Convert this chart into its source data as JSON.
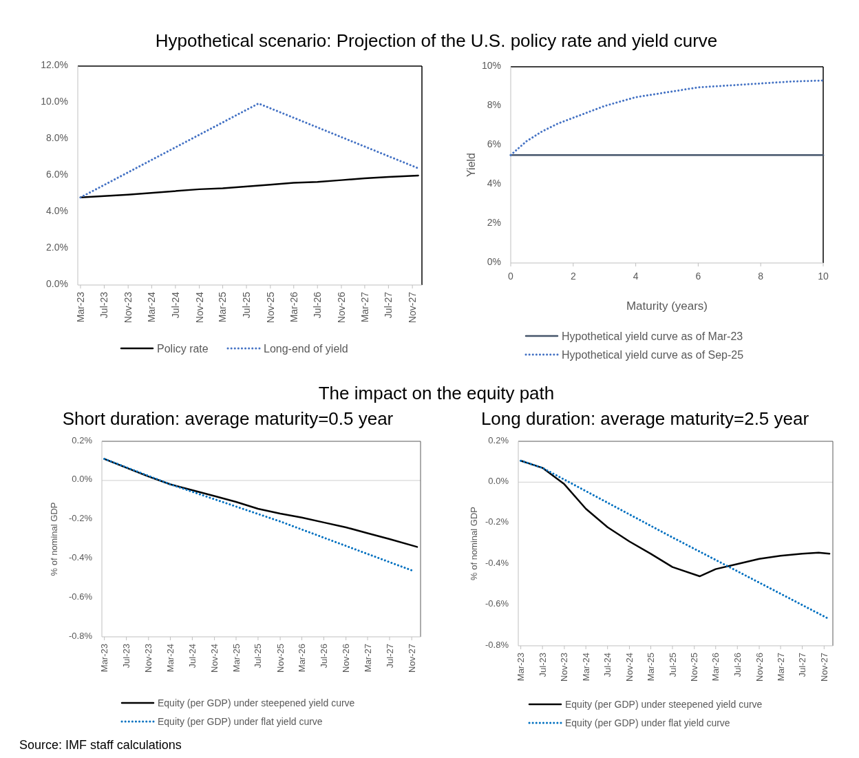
{
  "chart_data": [
    {
      "type": "line",
      "title": "Hypothetical scenario: Projection of the U.S. policy rate and yield curve",
      "xlim": [
        "2023-02-15",
        "2027-12-20"
      ],
      "xticks": [
        {
          "value": "2023-03",
          "label": "Mar-23"
        },
        {
          "value": "2023-07",
          "label": "Jul-23"
        },
        {
          "value": "2023-11",
          "label": "Nov-23"
        },
        {
          "value": "2024-03",
          "label": "Mar-24"
        },
        {
          "value": "2024-07",
          "label": "Jul-24"
        },
        {
          "value": "2024-11",
          "label": "Nov-24"
        },
        {
          "value": "2025-03",
          "label": "Mar-25"
        },
        {
          "value": "2025-07",
          "label": "Jul-25"
        },
        {
          "value": "2025-11",
          "label": "Nov-25"
        },
        {
          "value": "2026-03",
          "label": "Mar-26"
        },
        {
          "value": "2026-07",
          "label": "Jul-26"
        },
        {
          "value": "2026-11",
          "label": "Nov-26"
        },
        {
          "value": "2027-03",
          "label": "Mar-27"
        },
        {
          "value": "2027-07",
          "label": "Jul-27"
        },
        {
          "value": "2027-11",
          "label": "Nov-27"
        }
      ],
      "ylim": [
        0,
        12
      ],
      "yticks": [
        {
          "value": 0,
          "label": "0.0%"
        },
        {
          "value": 2,
          "label": "2.0%"
        },
        {
          "value": 4,
          "label": "4.0%"
        },
        {
          "value": 6,
          "label": "6.0%"
        },
        {
          "value": 8,
          "label": "8.0%"
        },
        {
          "value": 10,
          "label": "10.0%"
        },
        {
          "value": 12,
          "label": "12.0%"
        }
      ],
      "grid": false,
      "legend": "bottom",
      "series": [
        {
          "name": "Policy rate",
          "color": "#000000",
          "line_style": "solid",
          "x": [
            "2023-03",
            "2023-11",
            "2024-11",
            "2025-03",
            "2025-11",
            "2026-03",
            "2026-07",
            "2026-11",
            "2027-03",
            "2027-07",
            "2027-12"
          ],
          "values": [
            4.8,
            4.95,
            5.25,
            5.3,
            5.5,
            5.6,
            5.65,
            5.75,
            5.85,
            5.92,
            6.0
          ]
        },
        {
          "name": "Long-end of yield",
          "color": "#4472c4",
          "line_style": "dotted",
          "x": [
            "2023-03",
            "2025-09",
            "2027-12"
          ],
          "values": [
            4.8,
            9.95,
            6.4
          ]
        }
      ]
    },
    {
      "type": "line",
      "xlabel": "Maturity (years)",
      "ylabel": "Yield",
      "xlim": [
        0,
        10
      ],
      "xticks": [
        0,
        2,
        4,
        6,
        8,
        10
      ],
      "ylim": [
        0,
        10
      ],
      "yticks": [
        {
          "value": 0,
          "label": "0%"
        },
        {
          "value": 2,
          "label": "2%"
        },
        {
          "value": 4,
          "label": "4%"
        },
        {
          "value": 6,
          "label": "6%"
        },
        {
          "value": 8,
          "label": "8%"
        },
        {
          "value": 10,
          "label": "10%"
        }
      ],
      "grid": false,
      "legend": "bottom",
      "series": [
        {
          "name": "Hypothetical yield curve as of Mar-23",
          "color": "#44546a",
          "line_style": "solid",
          "x": [
            0,
            10
          ],
          "values": [
            5.5,
            5.5
          ]
        },
        {
          "name": "Hypothetical yield curve as of Sep-25",
          "color": "#4472c4",
          "line_style": "dotted",
          "x": [
            0,
            0.5,
            1,
            1.5,
            2,
            3,
            4,
            5,
            6,
            7,
            8,
            9,
            10
          ],
          "values": [
            5.5,
            6.2,
            6.7,
            7.1,
            7.4,
            8.0,
            8.45,
            8.7,
            8.95,
            9.05,
            9.15,
            9.25,
            9.3
          ]
        }
      ]
    },
    {
      "type": "line",
      "title": "The impact on the equity path",
      "subtitle": "Short duration: average maturity=0.5 year",
      "ylabel": "% of nominal GDP",
      "xlim": [
        "2023-02-15",
        "2027-12-20"
      ],
      "xticks": [
        {
          "value": "2023-03",
          "label": "Mar-23"
        },
        {
          "value": "2023-07",
          "label": "Jul-23"
        },
        {
          "value": "2023-11",
          "label": "Nov-23"
        },
        {
          "value": "2024-03",
          "label": "Mar-24"
        },
        {
          "value": "2024-07",
          "label": "Jul-24"
        },
        {
          "value": "2024-11",
          "label": "Nov-24"
        },
        {
          "value": "2025-03",
          "label": "Mar-25"
        },
        {
          "value": "2025-07",
          "label": "Jul-25"
        },
        {
          "value": "2025-11",
          "label": "Nov-25"
        },
        {
          "value": "2026-03",
          "label": "Mar-26"
        },
        {
          "value": "2026-07",
          "label": "Jul-26"
        },
        {
          "value": "2026-11",
          "label": "Nov-26"
        },
        {
          "value": "2027-03",
          "label": "Mar-27"
        },
        {
          "value": "2027-07",
          "label": "Jul-27"
        },
        {
          "value": "2027-11",
          "label": "Nov-27"
        }
      ],
      "ylim": [
        -0.8,
        0.2
      ],
      "yticks": [
        {
          "value": -0.8,
          "label": "-0.8%"
        },
        {
          "value": -0.6,
          "label": "-0.6%"
        },
        {
          "value": -0.4,
          "label": "-0.4%"
        },
        {
          "value": -0.2,
          "label": "-0.2%"
        },
        {
          "value": 0,
          "label": "0.0%"
        },
        {
          "value": 0.2,
          "label": "0.2%"
        }
      ],
      "grid": false,
      "legend": "bottom",
      "ref_lines": [
        {
          "axis": "y",
          "value": 0,
          "color": "#d9d9d9"
        }
      ],
      "series": [
        {
          "name": "Equity (per GDP) under steepened yield curve",
          "color": "#000000",
          "line_style": "solid",
          "x": [
            "2023-03",
            "2023-07",
            "2023-11",
            "2024-03",
            "2024-07",
            "2024-11",
            "2025-03",
            "2025-07",
            "2025-11",
            "2026-03",
            "2026-07",
            "2026-11",
            "2027-03",
            "2027-07",
            "2027-12"
          ],
          "values": [
            0.11,
            0.065,
            0.02,
            -0.02,
            -0.05,
            -0.08,
            -0.11,
            -0.145,
            -0.17,
            -0.19,
            -0.215,
            -0.24,
            -0.27,
            -0.3,
            -0.34
          ]
        },
        {
          "name": "Equity (per GDP) under flat yield curve",
          "color": "#0070c0",
          "line_style": "dotted",
          "x": [
            "2023-03",
            "2024-03",
            "2025-11",
            "2027-11"
          ],
          "values": [
            0.11,
            -0.02,
            -0.21,
            -0.46
          ]
        }
      ]
    },
    {
      "type": "line",
      "title": "Long duration: average maturity=2.5 year",
      "ylabel": "% of nominal GDP",
      "xlim": [
        "2023-02-15",
        "2027-12-20"
      ],
      "xticks": [
        {
          "value": "2023-03",
          "label": "Mar-23"
        },
        {
          "value": "2023-07",
          "label": "Jul-23"
        },
        {
          "value": "2023-11",
          "label": "Nov-23"
        },
        {
          "value": "2024-03",
          "label": "Mar-24"
        },
        {
          "value": "2024-07",
          "label": "Jul-24"
        },
        {
          "value": "2024-11",
          "label": "Nov-24"
        },
        {
          "value": "2025-03",
          "label": "Mar-25"
        },
        {
          "value": "2025-07",
          "label": "Jul-25"
        },
        {
          "value": "2025-11",
          "label": "Nov-25"
        },
        {
          "value": "2026-03",
          "label": "Mar-26"
        },
        {
          "value": "2026-07",
          "label": "Jul-26"
        },
        {
          "value": "2026-11",
          "label": "Nov-26"
        },
        {
          "value": "2027-03",
          "label": "Mar-27"
        },
        {
          "value": "2027-07",
          "label": "Jul-27"
        },
        {
          "value": "2027-11",
          "label": "Nov-27"
        }
      ],
      "ylim": [
        -0.8,
        0.2
      ],
      "yticks": [
        {
          "value": -0.8,
          "label": "-0.8%"
        },
        {
          "value": -0.6,
          "label": "-0.6%"
        },
        {
          "value": -0.4,
          "label": "-0.4%"
        },
        {
          "value": -0.2,
          "label": "-0.2%"
        },
        {
          "value": 0,
          "label": "0.0%"
        },
        {
          "value": 0.2,
          "label": "0.2%"
        }
      ],
      "grid": false,
      "legend": "bottom",
      "ref_lines": [
        {
          "axis": "y",
          "value": 0,
          "color": "#d9d9d9"
        }
      ],
      "annotations": [
        "Source: IMF staff calculations"
      ],
      "series": [
        {
          "name": "Equity (per GDP) under steepened yield curve",
          "color": "#000000",
          "line_style": "solid",
          "x": [
            "2023-03",
            "2023-07",
            "2023-11",
            "2024-03",
            "2024-07",
            "2024-11",
            "2025-03",
            "2025-07",
            "2025-12",
            "2026-03",
            "2026-07",
            "2026-11",
            "2027-03",
            "2027-07",
            "2027-10",
            "2027-12"
          ],
          "values": [
            0.105,
            0.07,
            -0.01,
            -0.13,
            -0.22,
            -0.29,
            -0.35,
            -0.415,
            -0.46,
            -0.425,
            -0.4,
            -0.375,
            -0.36,
            -0.35,
            -0.345,
            -0.35
          ]
        },
        {
          "name": "Equity (per GDP) under flat yield curve",
          "color": "#0070c0",
          "line_style": "dotted",
          "x": [
            "2023-03",
            "2023-07",
            "2025-07",
            "2027-12"
          ],
          "values": [
            0.105,
            0.07,
            -0.27,
            -0.67
          ]
        }
      ]
    }
  ]
}
